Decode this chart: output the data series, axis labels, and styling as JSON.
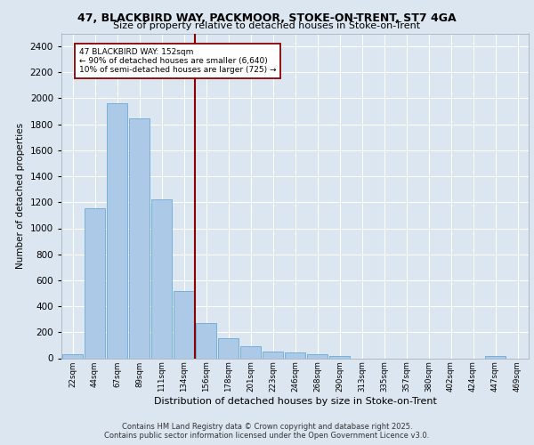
{
  "title_line1": "47, BLACKBIRD WAY, PACKMOOR, STOKE-ON-TRENT, ST7 4GA",
  "title_line2": "Size of property relative to detached houses in Stoke-on-Trent",
  "xlabel": "Distribution of detached houses by size in Stoke-on-Trent",
  "ylabel": "Number of detached properties",
  "footer_line1": "Contains HM Land Registry data © Crown copyright and database right 2025.",
  "footer_line2": "Contains public sector information licensed under the Open Government Licence v3.0.",
  "annotation_title": "47 BLACKBIRD WAY: 152sqm",
  "annotation_line1": "← 90% of detached houses are smaller (6,640)",
  "annotation_line2": "10% of semi-detached houses are larger (725) →",
  "categories": [
    "22sqm",
    "44sqm",
    "67sqm",
    "89sqm",
    "111sqm",
    "134sqm",
    "156sqm",
    "178sqm",
    "201sqm",
    "223sqm",
    "246sqm",
    "268sqm",
    "290sqm",
    "313sqm",
    "335sqm",
    "357sqm",
    "380sqm",
    "402sqm",
    "424sqm",
    "447sqm",
    "469sqm"
  ],
  "values": [
    28,
    1155,
    1960,
    1845,
    1225,
    515,
    270,
    155,
    90,
    48,
    42,
    28,
    18,
    0,
    0,
    0,
    0,
    0,
    0,
    18,
    0
  ],
  "bar_color": "#adc9e8",
  "bar_edge_color": "#6aaad4",
  "vline_color": "#8b0000",
  "vline_x_index": 6,
  "annotation_box_color": "#8b0000",
  "background_color": "#dce6f0",
  "plot_bg_color": "#dce6f0",
  "grid_color": "#ffffff",
  "ylim": [
    0,
    2500
  ],
  "yticks": [
    0,
    200,
    400,
    600,
    800,
    1000,
    1200,
    1400,
    1600,
    1800,
    2000,
    2200,
    2400
  ]
}
